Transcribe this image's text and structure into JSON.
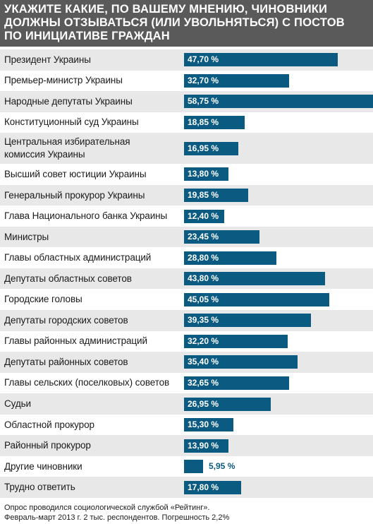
{
  "header": {
    "lines": [
      "УКАЖИТЕ КАКИЕ, ПО ВАШЕМУ МНЕНИЮ, ЧИНОВНИКИ",
      "ДОЛЖНЫ ОТЗЫВАТЬСЯ (ИЛИ УВОЛЬНЯТЬСЯ) С ПОСТОВ",
      "ПО ИНИЦИАТИВЕ ГРАЖДАН"
    ]
  },
  "chart_data": {
    "type": "bar",
    "orientation": "horizontal",
    "title": "УКАЖИТЕ КАКИЕ, ПО ВАШЕМУ МНЕНИЮ, ЧИНОВНИКИ ДОЛЖНЫ ОТЗЫВАТЬСЯ (ИЛИ УВОЛЬНЯТЬСЯ) С ПОСТОВ ПО ИНИЦИАТИВЕ ГРАЖДАН",
    "unit": "%",
    "xlim": [
      0,
      58.75
    ],
    "categories": [
      "Президент Украины",
      "Премьер-министр Украины",
      "Народные депутаты Украины",
      "Конституционный суд Украины",
      "Центральная избирательная комиссия Украины",
      "Высший совет юстиции Украины",
      "Генеральный прокурор Украины",
      "Глава Национального банка Украины",
      "Министры",
      "Главы областных администраций",
      "Депутаты областных советов",
      "Городские головы",
      "Депутаты городских советов",
      "Главы районных администраций",
      "Депутаты районных советов",
      "Главы сельских (поселковых) советов",
      "Судьи",
      "Областной прокурор",
      "Районный прокурор",
      "Другие чиновники",
      "Трудно ответить"
    ],
    "category_lines": [
      [
        "Президент Украины"
      ],
      [
        "Премьер-министр Украины"
      ],
      [
        "Народные депутаты Украины"
      ],
      [
        "Конституционный суд Украины"
      ],
      [
        "Центральная избирательная",
        "комиссия Украины"
      ],
      [
        "Высший совет юстиции Украины"
      ],
      [
        "Генеральный прокурор Украины"
      ],
      [
        "Глава Национального банка Украины"
      ],
      [
        "Министры"
      ],
      [
        "Главы областных администраций"
      ],
      [
        "Депутаты областных советов"
      ],
      [
        "Городские головы"
      ],
      [
        "Депутаты городских советов"
      ],
      [
        "Главы районных администраций"
      ],
      [
        "Депутаты районных советов"
      ],
      [
        "Главы сельских (поселковых) советов"
      ],
      [
        "Судьи"
      ],
      [
        "Областной прокурор"
      ],
      [
        "Районный прокурор"
      ],
      [
        "Другие чиновники"
      ],
      [
        "Трудно ответить"
      ]
    ],
    "values": [
      47.7,
      32.7,
      58.75,
      18.85,
      16.95,
      13.8,
      19.85,
      12.4,
      23.45,
      28.8,
      43.8,
      45.05,
      39.35,
      32.2,
      35.4,
      32.65,
      26.95,
      15.3,
      13.9,
      5.95,
      17.8
    ],
    "value_labels": [
      "47,70 %",
      "32,70 %",
      "58,75 %",
      "18,85 %",
      "16,95 %",
      "13,80 %",
      "19,85 %",
      "12,40 %",
      "23,45 %",
      "28,80 %",
      "43,80 %",
      "45,05 %",
      "39,35 %",
      "32,20 %",
      "35,40 %",
      "32,65 %",
      "26,95 %",
      "15,30 %",
      "13,90 %",
      "5,95 %",
      "17,80 %"
    ],
    "bar_color": "#0b5a82",
    "row_shade_color": "#e8e8e8"
  },
  "footer": {
    "lines": [
      "Опрос проводился социологической службой «Рейтинг».",
      "Февраль-март 2013 г. 2 тыс. респондентов. Погрешность 2,2%"
    ]
  }
}
